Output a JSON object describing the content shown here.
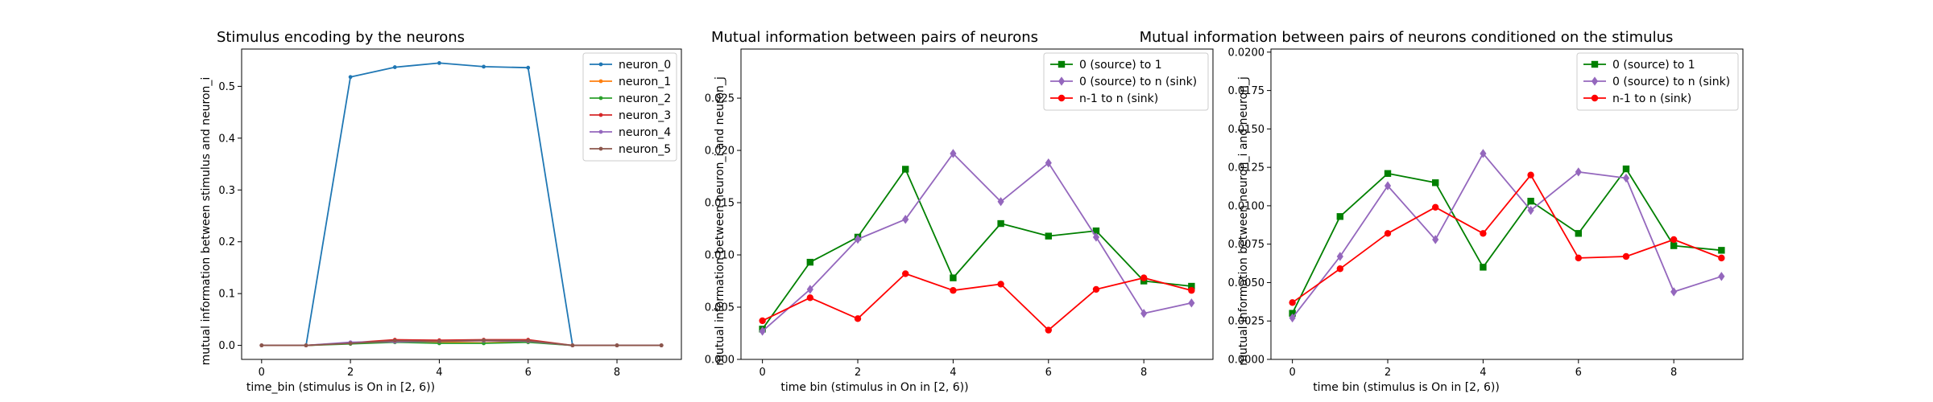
{
  "chart_data": [
    {
      "type": "line",
      "title": "Stimulus encoding by the neurons",
      "xlabel": "time_bin (stimulus is On in [2, 6))",
      "ylabel": "mutual information between stimulus and neuron_i",
      "xlim": [
        -0.45,
        9.45
      ],
      "ylim": [
        -0.027,
        0.572
      ],
      "xticks": [
        "0",
        "2",
        "4",
        "6",
        "8"
      ],
      "yticks": [
        "0.0",
        "0.1",
        "0.2",
        "0.3",
        "0.4",
        "0.5"
      ],
      "legend_position": "upper right",
      "x": [
        0,
        1,
        2,
        3,
        4,
        5,
        6,
        7,
        8,
        9
      ],
      "series": [
        {
          "name": "neuron_0",
          "color": "#1f77b4",
          "marker": "dot",
          "values": [
            0.0,
            0.0,
            0.518,
            0.537,
            0.545,
            0.538,
            0.536,
            0.0,
            0.0,
            0.0
          ]
        },
        {
          "name": "neuron_1",
          "color": "#ff7f0e",
          "marker": "dot",
          "values": [
            0.0,
            0.0,
            0.004,
            0.008,
            0.006,
            0.005,
            0.007,
            0.0,
            0.0,
            0.0
          ]
        },
        {
          "name": "neuron_2",
          "color": "#2ca02c",
          "marker": "dot",
          "values": [
            0.0,
            0.0,
            0.003,
            0.006,
            0.004,
            0.004,
            0.006,
            0.0,
            0.0,
            0.0
          ]
        },
        {
          "name": "neuron_3",
          "color": "#d62728",
          "marker": "dot",
          "values": [
            0.0,
            0.0,
            0.005,
            0.011,
            0.01,
            0.011,
            0.011,
            0.0,
            0.0,
            0.0
          ]
        },
        {
          "name": "neuron_4",
          "color": "#9467bd",
          "marker": "dot",
          "values": [
            0.0,
            0.0,
            0.006,
            0.007,
            0.008,
            0.009,
            0.008,
            0.0,
            0.0,
            0.0
          ]
        },
        {
          "name": "neuron_5",
          "color": "#8c564b",
          "marker": "dot",
          "values": [
            0.0,
            0.0,
            0.004,
            0.009,
            0.008,
            0.01,
            0.009,
            0.0,
            0.0,
            0.0
          ]
        }
      ]
    },
    {
      "type": "line",
      "title": "Mutual information between pairs of neurons",
      "xlabel": "time bin (stimulus in On in [2, 6))",
      "ylabel": "mutual information between neuron_i and neuron_j",
      "xlim": [
        -0.45,
        9.45
      ],
      "ylim": [
        0.0,
        0.0297
      ],
      "xticks": [
        "0",
        "2",
        "4",
        "6",
        "8"
      ],
      "yticks": [
        "0.000",
        "0.005",
        "0.010",
        "0.015",
        "0.020",
        "0.025"
      ],
      "legend_position": "upper right",
      "x": [
        0,
        1,
        2,
        3,
        4,
        5,
        6,
        7,
        8,
        9
      ],
      "series": [
        {
          "name": "0 (source) to 1",
          "color": "#008000",
          "marker": "square",
          "values": [
            0.0029,
            0.0093,
            0.0117,
            0.0182,
            0.0078,
            0.013,
            0.0118,
            0.0123,
            0.0075,
            0.007
          ]
        },
        {
          "name": "0 (source) to n (sink)",
          "color": "#9467bd",
          "marker": "diamond",
          "values": [
            0.0027,
            0.0067,
            0.0115,
            0.0134,
            0.0197,
            0.0151,
            0.0188,
            0.0117,
            0.0044,
            0.0054
          ]
        },
        {
          "name": "n-1 to n (sink)",
          "color": "#ff0000",
          "marker": "circle",
          "values": [
            0.0037,
            0.0059,
            0.0039,
            0.0082,
            0.0066,
            0.0072,
            0.0028,
            0.0067,
            0.0078,
            0.0066
          ]
        }
      ]
    },
    {
      "type": "line",
      "title": "Mutual information between pairs of neurons conditioned on the stimulus",
      "xlabel": "time bin (stimulus is On in [2, 6))",
      "ylabel": "mutual information between neuron_i and neuron_j",
      "xlim": [
        -0.45,
        9.45
      ],
      "ylim": [
        0.0,
        0.0202
      ],
      "xticks": [
        "0",
        "2",
        "4",
        "6",
        "8"
      ],
      "yticks": [
        "0.0000",
        "0.0025",
        "0.0050",
        "0.0075",
        "0.0100",
        "0.0125",
        "0.0150",
        "0.0175",
        "0.0200"
      ],
      "legend_position": "upper right",
      "x": [
        0,
        1,
        2,
        3,
        4,
        5,
        6,
        7,
        8,
        9
      ],
      "series": [
        {
          "name": "0 (source) to 1",
          "color": "#008000",
          "marker": "square",
          "values": [
            0.003,
            0.0093,
            0.0121,
            0.0115,
            0.006,
            0.0103,
            0.0082,
            0.0124,
            0.0074,
            0.0071
          ]
        },
        {
          "name": "0 (source) to n (sink)",
          "color": "#9467bd",
          "marker": "diamond",
          "values": [
            0.0027,
            0.0067,
            0.0113,
            0.0078,
            0.0134,
            0.0097,
            0.0122,
            0.0118,
            0.0044,
            0.0054
          ]
        },
        {
          "name": "n-1 to n (sink)",
          "color": "#ff0000",
          "marker": "circle",
          "values": [
            0.0037,
            0.0059,
            0.0082,
            0.0099,
            0.0082,
            0.012,
            0.0066,
            0.0067,
            0.0078,
            0.0066
          ]
        }
      ]
    }
  ]
}
